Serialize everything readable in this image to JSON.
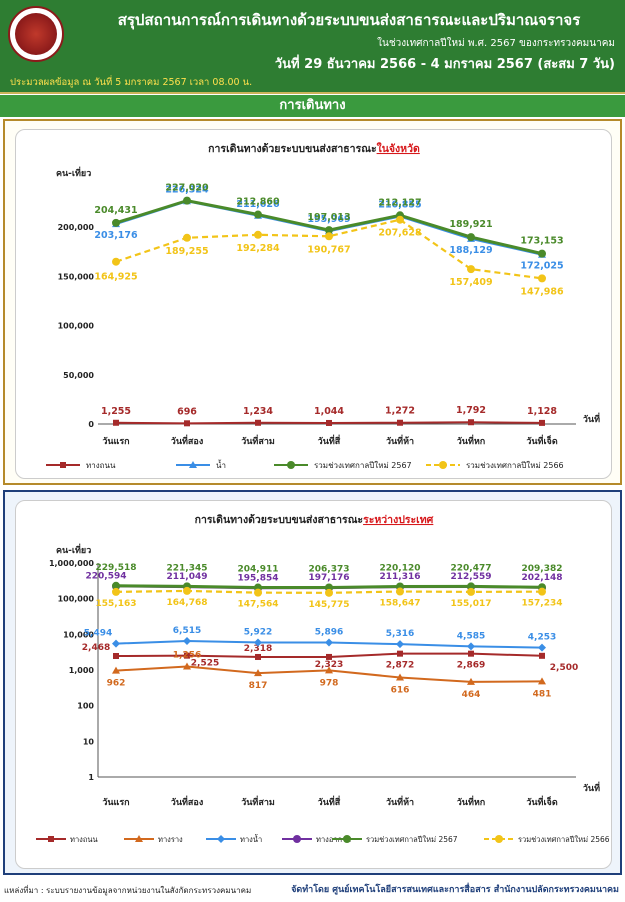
{
  "header": {
    "title": "สรุปสถานการณ์การเดินทางด้วยระบบขนส่งสาธารณะและปริมาณจราจร",
    "subtitle": "ในช่วงเทศกาลปีใหม่ พ.ศ. 2567 ของกระทรวงคมนาคม",
    "dates": "วันที่ 29 ธันวาคม 2566 - 4 มกราคม 2567 (สะสม 7 วัน)",
    "as_of": "ประมวลผลข้อมูล ณ วันที่ 5 มกราคม 2567 เวลา 08.00 น."
  },
  "section_title": "การเดินทาง",
  "footer": {
    "source": "แหล่งที่มา : ระบบรายงานข้อมูลจากหน่วยงานในสังกัดกระทรวงคมนาคม",
    "credit": "จัดทำโดย ศูนย์เทคโนโลยีสารสนเทศและการสื่อสาร สำนักงานปลัดกระทรวงคมนาคม"
  },
  "colors": {
    "header_bg": "#2e7d32",
    "road": "#a52a2a",
    "rail": "#d2691e",
    "water": "#3a8ee6",
    "air": "#7030a0",
    "total": "#4a8a2a",
    "prev": "#f2c418"
  },
  "chart_data": [
    {
      "type": "line",
      "title_prefix": "การเดินทางด้วยระบบขนส่งสาธารณะ",
      "title_highlight": "ในจังหวัด",
      "ylabel": "คน-เที่ยว",
      "xlabel": "วันที่",
      "ylim": [
        0,
        250000
      ],
      "yticks": [
        "0",
        "50,000",
        "100,000",
        "150,000",
        "200,000"
      ],
      "categories": [
        "วันแรก",
        "วันที่สอง",
        "วันที่สาม",
        "วันที่สี่",
        "วันที่ห้า",
        "วันที่หก",
        "วันที่เจ็ด"
      ],
      "series": [
        {
          "name": "ทางถนน",
          "values": [
            1255,
            696,
            1234,
            1044,
            1272,
            1792,
            1128
          ],
          "labels": [
            "1,255",
            "696",
            "1,234",
            "1,044",
            "1,272",
            "1,792",
            "1,128"
          ]
        },
        {
          "name": "น้ำ",
          "values": [
            203176,
            226324,
            211626,
            195969,
            210855,
            188129,
            172025
          ],
          "labels": [
            "203,176",
            "226,324",
            "211,626",
            "195,969",
            "210,855",
            "188,129",
            "172,025"
          ]
        },
        {
          "name": "รวมช่วงเทศกาลปีใหม่ 2567",
          "values": [
            204431,
            227020,
            212860,
            197013,
            212127,
            189921,
            173153
          ],
          "labels": [
            "204,431",
            "227,020",
            "212,860",
            "197,013",
            "212,127",
            "189,921",
            "173,153"
          ]
        },
        {
          "name": "รวมช่วงเทศกาลปีใหม่ 2566",
          "values": [
            164925,
            189255,
            192284,
            190767,
            207628,
            157409,
            147986
          ],
          "labels": [
            "164,925",
            "189,255",
            "192,284",
            "190,767",
            "207,628",
            "157,409",
            "147,986"
          ]
        }
      ]
    },
    {
      "type": "line",
      "scale": "log",
      "title_prefix": "การเดินทางด้วยระบบขนส่งสาธารณะ",
      "title_highlight": "ระหว่างประเทศ",
      "ylabel": "คน-เที่ยว",
      "xlabel": "วันที่",
      "ylim": [
        1,
        1000000
      ],
      "yticks": [
        "1",
        "10",
        "100",
        "1,000",
        "10,000",
        "100,000",
        "1,000,000"
      ],
      "categories": [
        "วันแรก",
        "วันที่สอง",
        "วันที่สาม",
        "วันที่สี่",
        "วันที่ห้า",
        "วันที่หก",
        "วันที่เจ็ด"
      ],
      "series": [
        {
          "name": "ทางถนน",
          "values": [
            2468,
            2525,
            2318,
            2323,
            2872,
            2869,
            2500
          ],
          "labels": [
            "2,468",
            "2,525",
            "2,318",
            "2,323",
            "2,872",
            "2,869",
            "2,500"
          ]
        },
        {
          "name": "ทางราง",
          "values": [
            962,
            1256,
            817,
            978,
            616,
            464,
            481
          ],
          "labels": [
            "962",
            "1,256",
            "817",
            "978",
            "616",
            "464",
            "481"
          ]
        },
        {
          "name": "ทางน้ำ",
          "values": [
            5494,
            6515,
            5922,
            5896,
            5316,
            4585,
            4253
          ],
          "labels": [
            "5,494",
            "6,515",
            "5,922",
            "5,896",
            "5,316",
            "4,585",
            "4,253"
          ]
        },
        {
          "name": "ทางอากาศ",
          "values": [
            220594,
            211049,
            195854,
            197176,
            211316,
            212559,
            202148
          ],
          "labels": [
            "220,594",
            "211,049",
            "195,854",
            "197,176",
            "211,316",
            "212,559",
            "202,148"
          ]
        },
        {
          "name": "รวมช่วงเทศกาลปีใหม่ 2567",
          "values": [
            229518,
            221345,
            204911,
            206373,
            220120,
            220477,
            209382
          ],
          "labels": [
            "229,518",
            "221,345",
            "204,911",
            "206,373",
            "220,120",
            "220,477",
            "209,382"
          ]
        },
        {
          "name": "รวมช่วงเทศกาลปีใหม่ 2566",
          "values": [
            155163,
            164768,
            147564,
            145775,
            158647,
            155017,
            157234
          ],
          "labels": [
            "155,163",
            "164,768",
            "147,564",
            "145,775",
            "158,647",
            "155,017",
            "157,234"
          ]
        }
      ]
    }
  ]
}
